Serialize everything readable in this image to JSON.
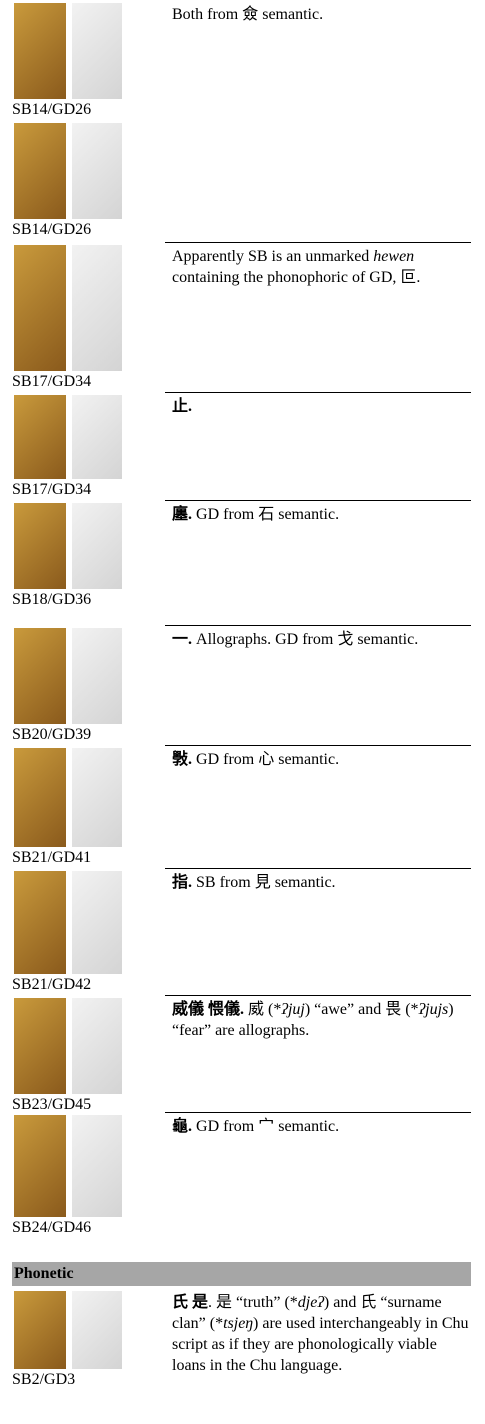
{
  "rows": [
    {
      "label": "SB14/GD26",
      "parts": [
        {
          "text": "Both from 僉 semantic."
        }
      ]
    },
    {
      "label": "SB14/GD26",
      "parts": []
    },
    {
      "label": "SB17/GD34",
      "parts": [
        {
          "text": "Apparently SB is an unmarked "
        },
        {
          "text": "hewen",
          "italic": true
        },
        {
          "text": " containing the phonophoric of GD, 叵."
        }
      ]
    },
    {
      "label": "SB17/GD34",
      "headword": "止.",
      "parts": []
    },
    {
      "label": "SB18/GD36",
      "headword": "廛.",
      "parts": [
        {
          "text": " GD from 石 semantic."
        }
      ]
    },
    {
      "label": "SB20/GD39",
      "headword": "一.",
      "parts": [
        {
          "text": " Allographs. GD from 戈 semantic."
        }
      ]
    },
    {
      "label": "SB21/GD41",
      "headword": "斅.",
      "parts": [
        {
          "text": " GD from 心 semantic."
        }
      ]
    },
    {
      "label": "SB21/GD42",
      "headword": "指.",
      "parts": [
        {
          "text": " SB from 見 semantic."
        }
      ]
    },
    {
      "label": "SB23/GD45",
      "headword": "威儀 愄儀.",
      "parts": [
        {
          "text": " 威 (*"
        },
        {
          "text": "ʔjuj",
          "italic": true
        },
        {
          "text": ")  “awe” and 畏 (*"
        },
        {
          "text": "ʔjujs",
          "italic": true
        },
        {
          "text": ") “fear” are allographs."
        }
      ]
    },
    {
      "label": "SB24/GD46",
      "headword": "龜.",
      "parts": [
        {
          "text": " GD from 宀 semantic."
        }
      ]
    }
  ],
  "section": {
    "title": "Phonetic",
    "rows": [
      {
        "label": "SB2/GD3",
        "headword": "氏 是",
        "parts": [
          {
            "text": ". 是 “truth” (*"
          },
          {
            "text": "djeʔ",
            "italic": true
          },
          {
            "text": ") and 氏 “surname clan” (*"
          },
          {
            "text": "tsjeŋ",
            "italic": true
          },
          {
            "text": ") are used interchangeably in Chu script as if they are phonologically viable loans in the Chu language."
          }
        ]
      }
    ]
  }
}
